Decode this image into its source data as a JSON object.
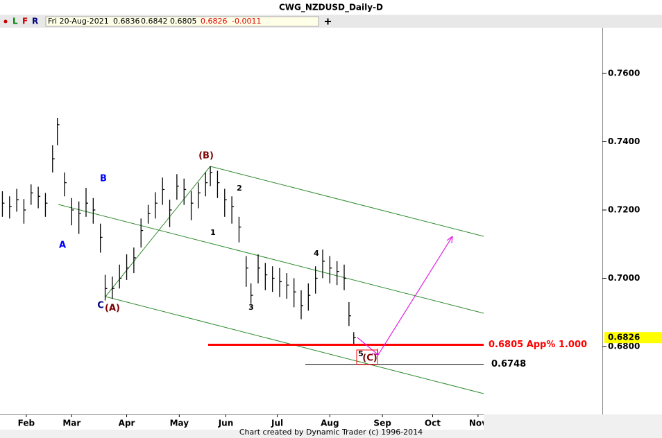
{
  "chart_data": {
    "type": "ohlc",
    "title": "CWG_NZDUSD_Daily-D",
    "toolbar": {
      "buttons": [
        "L",
        "F",
        "R"
      ],
      "date": "Fri 20-Aug-2021",
      "open": "0.6836",
      "high": "0.6842",
      "low": "0.6805",
      "close": "0.6826",
      "change": "-0.0011"
    },
    "x": [
      1,
      4,
      7,
      10,
      13,
      16,
      19,
      22,
      24,
      27,
      30,
      33,
      36,
      39,
      42,
      44,
      47,
      50,
      53,
      56,
      59,
      62,
      65,
      68,
      71,
      74,
      77,
      80,
      83,
      86,
      88,
      91,
      94,
      97,
      100,
      103,
      105,
      108,
      111,
      114,
      117,
      120,
      123,
      126,
      129,
      132,
      135,
      138,
      141,
      144,
      146,
      148
    ],
    "high": [
      0.7255,
      0.724,
      0.7262,
      0.7232,
      0.7275,
      0.7268,
      0.725,
      0.739,
      0.747,
      0.731,
      0.7235,
      0.7225,
      0.7265,
      0.7235,
      0.716,
      0.701,
      0.7005,
      0.704,
      0.707,
      0.709,
      0.7175,
      0.7215,
      0.7252,
      0.7295,
      0.723,
      0.7305,
      0.7292,
      0.7255,
      0.728,
      0.731,
      0.7328,
      0.7315,
      0.7262,
      0.724,
      0.718,
      0.7065,
      0.6985,
      0.707,
      0.7045,
      0.7035,
      0.703,
      0.7015,
      0.7,
      0.6965,
      0.6985,
      0.7035,
      0.7084,
      0.7065,
      0.705,
      0.704,
      0.693,
      0.6842
    ],
    "low": [
      0.718,
      0.7175,
      0.7195,
      0.716,
      0.7215,
      0.7205,
      0.718,
      0.731,
      0.739,
      0.724,
      0.7155,
      0.713,
      0.718,
      0.716,
      0.7075,
      0.6935,
      0.694,
      0.697,
      0.6995,
      0.7015,
      0.709,
      0.716,
      0.7175,
      0.7215,
      0.715,
      0.723,
      0.7215,
      0.717,
      0.7205,
      0.724,
      0.727,
      0.7235,
      0.718,
      0.716,
      0.7105,
      0.6975,
      0.6925,
      0.6985,
      0.6965,
      0.696,
      0.6945,
      0.694,
      0.6915,
      0.688,
      0.6905,
      0.6955,
      0.7,
      0.6985,
      0.698,
      0.6965,
      0.686,
      0.6805
    ],
    "close": [
      0.722,
      0.721,
      0.723,
      0.72,
      0.725,
      0.724,
      0.722,
      0.735,
      0.745,
      0.728,
      0.72,
      0.719,
      0.722,
      0.72,
      0.712,
      0.697,
      0.697,
      0.7,
      0.703,
      0.706,
      0.714,
      0.719,
      0.722,
      0.726,
      0.72,
      0.727,
      0.726,
      0.722,
      0.725,
      0.728,
      0.731,
      0.728,
      0.723,
      0.721,
      0.715,
      0.703,
      0.695,
      0.703,
      0.701,
      0.7,
      0.699,
      0.698,
      0.696,
      0.692,
      0.695,
      0.7,
      0.705,
      0.703,
      0.702,
      0.7,
      0.689,
      0.6826
    ],
    "color": "#000000",
    "xlim": [
      0,
      252
    ],
    "xticks": [
      {
        "value": 11,
        "label": "Feb"
      },
      {
        "value": 30,
        "label": "Mar"
      },
      {
        "value": 53,
        "label": "Apr"
      },
      {
        "value": 75,
        "label": "May"
      },
      {
        "value": 94.5,
        "label": "Jun"
      },
      {
        "value": 116,
        "label": "Jul"
      },
      {
        "value": 138,
        "label": "Aug"
      },
      {
        "value": 160,
        "label": "Sep"
      },
      {
        "value": 181,
        "label": "Oct"
      },
      {
        "value": 200,
        "label": "Nov"
      }
    ],
    "ylim": [
      0.6601,
      0.7734
    ],
    "yticks": [
      {
        "value": 0.68,
        "label": "0.6800"
      },
      {
        "value": 0.7,
        "label": "0.7000"
      },
      {
        "value": 0.72,
        "label": "0.7200"
      },
      {
        "value": 0.74,
        "label": "0.7400"
      },
      {
        "value": 0.76,
        "label": "0.7600"
      }
    ],
    "last_price": 0.6826,
    "last_price_label": "0.6826",
    "levels": [
      {
        "value": 0.6805,
        "label": "0.6805 App% 1.000",
        "color": "#ff0000"
      },
      {
        "value": 0.6748,
        "label": "0.6748",
        "color": "#000000"
      }
    ],
    "wave_labels": [
      "A",
      "B",
      "C",
      "(A)",
      "(B)",
      "(C)",
      "1",
      "2",
      "3",
      "4",
      "5"
    ],
    "footer": "Chart created by Dynamic Trader  (c) 1996-2014"
  }
}
